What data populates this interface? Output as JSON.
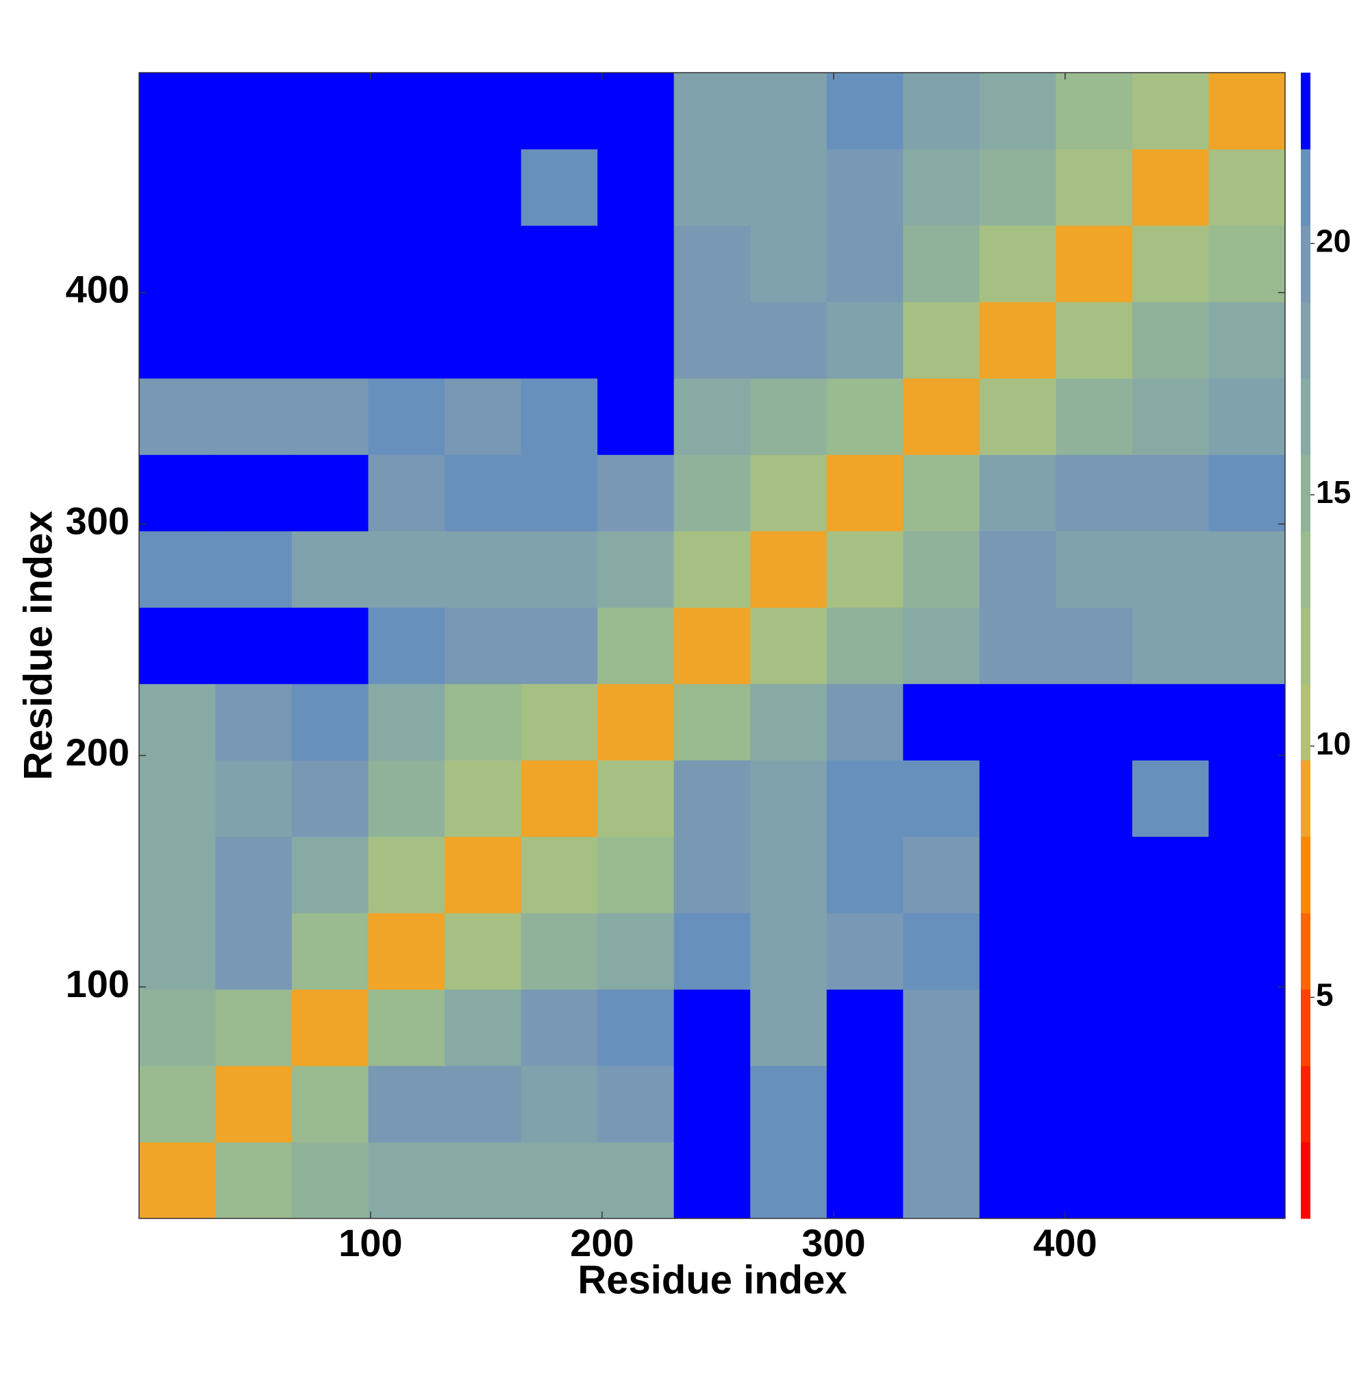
{
  "chart_data": {
    "type": "heatmap",
    "x_label": "Residue index",
    "y_label": "Residue index",
    "xlim": [
      0,
      495
    ],
    "ylim": [
      0,
      495
    ],
    "xticks": [
      100,
      200,
      300,
      400
    ],
    "yticks": [
      100,
      200,
      300,
      400
    ],
    "bin_edges": [
      0,
      33,
      66,
      99,
      132,
      165,
      198,
      231,
      264,
      297,
      330,
      363,
      396,
      429,
      462,
      495
    ],
    "z": [
      [
        9,
        13,
        15,
        17,
        17,
        17,
        17,
        22,
        21,
        22,
        20,
        23,
        23,
        23,
        23
      ],
      [
        13,
        9,
        13,
        19,
        19,
        18,
        20,
        22,
        21,
        22,
        20,
        22,
        23,
        23,
        23
      ],
      [
        15,
        13,
        9,
        13,
        17,
        19,
        21,
        22,
        18,
        22,
        20,
        22,
        23,
        23,
        23
      ],
      [
        17,
        19,
        13,
        9,
        12,
        15,
        17,
        21,
        18,
        20,
        21,
        23,
        23,
        23,
        23
      ],
      [
        17,
        19,
        17,
        12,
        9,
        12,
        14,
        20,
        18,
        21,
        20,
        23,
        23,
        22,
        23
      ],
      [
        17,
        18,
        19,
        15,
        12,
        9,
        12,
        19,
        18,
        21,
        21,
        23,
        22,
        21,
        22
      ],
      [
        17,
        20,
        21,
        17,
        14,
        12,
        9,
        13,
        17,
        20,
        22,
        23,
        23,
        23,
        23
      ],
      [
        22,
        22,
        22,
        21,
        20,
        19,
        13,
        9,
        12,
        15,
        17,
        20,
        19,
        18,
        18
      ],
      [
        21,
        21,
        18,
        18,
        18,
        18,
        17,
        12,
        9,
        12,
        15,
        19,
        18,
        18,
        18
      ],
      [
        22,
        22,
        22,
        20,
        21,
        21,
        20,
        15,
        12,
        9,
        14,
        18,
        20,
        20,
        21
      ],
      [
        20,
        20,
        20,
        21,
        20,
        21,
        22,
        17,
        15,
        14,
        9,
        12,
        15,
        16,
        18
      ],
      [
        23,
        22,
        22,
        23,
        23,
        23,
        23,
        20,
        19,
        18,
        12,
        9,
        12,
        15,
        17
      ],
      [
        23,
        23,
        23,
        23,
        23,
        22,
        23,
        19,
        18,
        20,
        15,
        12,
        9,
        12,
        14
      ],
      [
        23,
        23,
        23,
        23,
        22,
        21,
        23,
        18,
        18,
        20,
        16,
        15,
        12,
        9,
        12
      ],
      [
        23,
        23,
        23,
        23,
        23,
        22,
        23,
        18,
        18,
        21,
        18,
        17,
        14,
        12,
        9
      ]
    ],
    "colorbar": {
      "zlim": [
        0.6,
        23.4
      ],
      "ticks": [
        5,
        10,
        15,
        20
      ],
      "levels": [
        0.6,
        2.12,
        3.64,
        5.16,
        6.68,
        8.2,
        9.72,
        11.24,
        12.76,
        14.28,
        15.8,
        17.32,
        18.84,
        20.36,
        21.88,
        23.4
      ],
      "colors": [
        "#ff0000",
        "#ff2000",
        "#ff4400",
        "#ff6600",
        "#ff8800",
        "#f0a428",
        "#b4c078",
        "#a6c084",
        "#9aba90",
        "#90b29a",
        "#88aaa4",
        "#80a2ac",
        "#7898b4",
        "#6890bc",
        "#0000ff"
      ]
    }
  }
}
